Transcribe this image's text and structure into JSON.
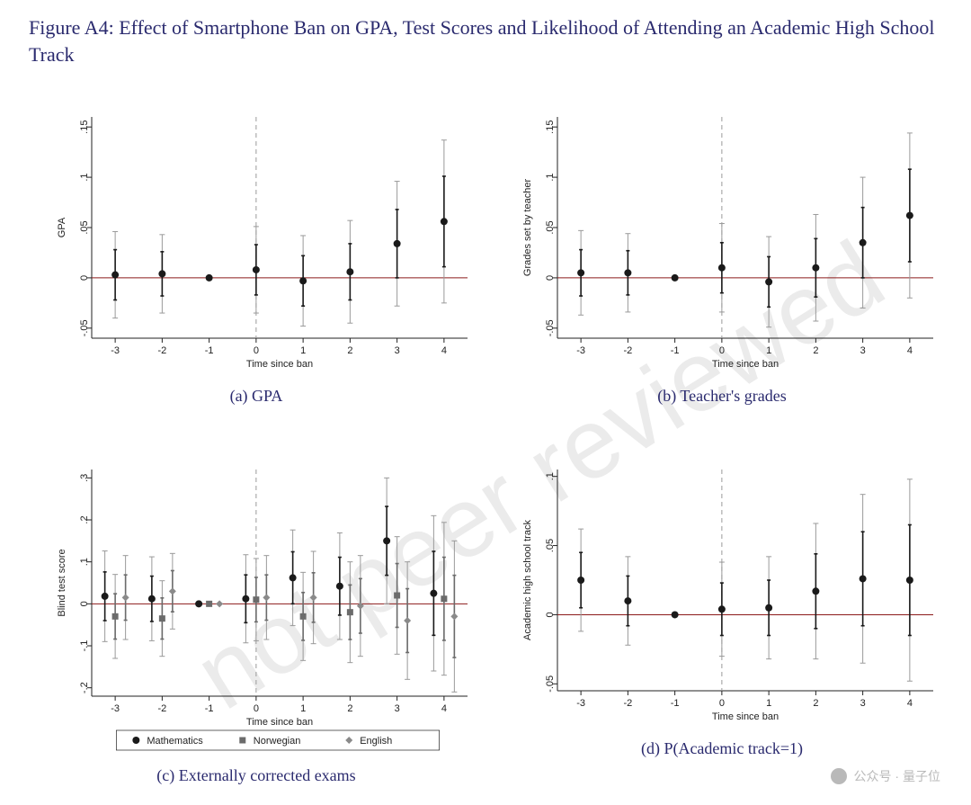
{
  "title": "Figure A4: Effect of Smartphone Ban on GPA, Test Scores and Likelihood of Attending an Academic High School Track",
  "watermark_text": "not peer reviewed",
  "watermark_color": "#e7e7e7",
  "footer_text": "公众号 · 量子位",
  "global": {
    "background_color": "#ffffff",
    "axis_color": "#222222",
    "tick_font_size": 11,
    "axis_label_font_size": 11,
    "zero_line_color": "#8b1a1a",
    "zero_line_width": 1,
    "vline_x": 0,
    "vline_color": "#9a9a9a",
    "vline_dash": "5,4",
    "x_ticks": [
      -3,
      -2,
      -1,
      0,
      1,
      2,
      3,
      4
    ],
    "x_label": "Time since ban",
    "series_colors": {
      "main": "#1a1a1a",
      "math": "#1a1a1a",
      "norwegian": "#6b6b6b",
      "english": "#8a8a8a"
    },
    "ci_cap_width": 6,
    "marker_size": 4,
    "square_size": 7,
    "diamond_size": 8,
    "ci_outer_color": "#9a9a9a",
    "ci_inner_color_main": "#1a1a1a",
    "ci_inner_color_grey": "#6b6b6b"
  },
  "panels": {
    "a": {
      "caption": "(a) GPA",
      "y_label": "GPA",
      "y_ticks": [
        -0.05,
        0,
        0.05,
        0.1,
        0.15
      ],
      "y_tick_labels": [
        "-.05",
        "0",
        ".05",
        ".1",
        ".15"
      ],
      "ylim": [
        -0.06,
        0.16
      ],
      "series": [
        {
          "name": "main",
          "marker": "circle",
          "color_key": "main",
          "points": [
            {
              "x": -3,
              "y": 0.003,
              "lo": -0.04,
              "hi": 0.046,
              "ilo": -0.022,
              "ihi": 0.028
            },
            {
              "x": -2,
              "y": 0.004,
              "lo": -0.035,
              "hi": 0.043,
              "ilo": -0.018,
              "ihi": 0.026
            },
            {
              "x": -1,
              "y": 0.0,
              "lo": 0.0,
              "hi": 0.0,
              "ilo": 0.0,
              "ihi": 0.0
            },
            {
              "x": 0,
              "y": 0.008,
              "lo": -0.035,
              "hi": 0.051,
              "ilo": -0.017,
              "ihi": 0.033
            },
            {
              "x": 1,
              "y": -0.003,
              "lo": -0.048,
              "hi": 0.042,
              "ilo": -0.028,
              "ihi": 0.022
            },
            {
              "x": 2,
              "y": 0.006,
              "lo": -0.045,
              "hi": 0.057,
              "ilo": -0.022,
              "ihi": 0.034
            },
            {
              "x": 3,
              "y": 0.034,
              "lo": -0.028,
              "hi": 0.096,
              "ilo": 0.0,
              "ihi": 0.068
            },
            {
              "x": 4,
              "y": 0.056,
              "lo": -0.025,
              "hi": 0.137,
              "ilo": 0.011,
              "ihi": 0.101
            }
          ]
        }
      ]
    },
    "b": {
      "caption": "(b) Teacher's grades",
      "y_label": "Grades set by teacher",
      "y_ticks": [
        -0.05,
        0,
        0.05,
        0.1,
        0.15
      ],
      "y_tick_labels": [
        "-.05",
        "0",
        ".05",
        ".1",
        ".15"
      ],
      "ylim": [
        -0.06,
        0.16
      ],
      "series": [
        {
          "name": "main",
          "marker": "circle",
          "color_key": "main",
          "points": [
            {
              "x": -3,
              "y": 0.005,
              "lo": -0.037,
              "hi": 0.047,
              "ilo": -0.018,
              "ihi": 0.028
            },
            {
              "x": -2,
              "y": 0.005,
              "lo": -0.034,
              "hi": 0.044,
              "ilo": -0.017,
              "ihi": 0.027
            },
            {
              "x": -1,
              "y": 0.0,
              "lo": 0.0,
              "hi": 0.0,
              "ilo": 0.0,
              "ihi": 0.0
            },
            {
              "x": 0,
              "y": 0.01,
              "lo": -0.034,
              "hi": 0.054,
              "ilo": -0.015,
              "ihi": 0.035
            },
            {
              "x": 1,
              "y": -0.004,
              "lo": -0.049,
              "hi": 0.041,
              "ilo": -0.029,
              "ihi": 0.021
            },
            {
              "x": 2,
              "y": 0.01,
              "lo": -0.043,
              "hi": 0.063,
              "ilo": -0.019,
              "ihi": 0.039
            },
            {
              "x": 3,
              "y": 0.035,
              "lo": -0.03,
              "hi": 0.1,
              "ilo": 0.0,
              "ihi": 0.07
            },
            {
              "x": 4,
              "y": 0.062,
              "lo": -0.02,
              "hi": 0.144,
              "ilo": 0.016,
              "ihi": 0.108
            }
          ]
        }
      ]
    },
    "c": {
      "caption": "(c) Externally corrected exams",
      "y_label": "Blind test score",
      "y_ticks": [
        -0.2,
        -0.1,
        0,
        0.1,
        0.2,
        0.3
      ],
      "y_tick_labels": [
        "-.2",
        "-.1",
        "0",
        ".1",
        ".2",
        ".3"
      ],
      "ylim": [
        -0.22,
        0.32
      ],
      "legend": [
        {
          "label": "Mathematics",
          "marker": "circle",
          "color_key": "math"
        },
        {
          "label": "Norwegian",
          "marker": "square",
          "color_key": "norwegian"
        },
        {
          "label": "English",
          "marker": "diamond",
          "color_key": "english"
        }
      ],
      "offsets": {
        "math": -0.22,
        "norwegian": 0.0,
        "english": 0.22
      },
      "series": [
        {
          "name": "math",
          "marker": "circle",
          "color_key": "math",
          "offset": -0.22,
          "points": [
            {
              "x": -3,
              "y": 0.018,
              "lo": -0.09,
              "hi": 0.126,
              "ilo": -0.04,
              "ihi": 0.076
            },
            {
              "x": -2,
              "y": 0.012,
              "lo": -0.088,
              "hi": 0.112,
              "ilo": -0.042,
              "ihi": 0.066
            },
            {
              "x": -1,
              "y": 0.0,
              "lo": 0.0,
              "hi": 0.0,
              "ilo": 0.0,
              "ihi": 0.0
            },
            {
              "x": 0,
              "y": 0.012,
              "lo": -0.093,
              "hi": 0.117,
              "ilo": -0.045,
              "ihi": 0.069
            },
            {
              "x": 1,
              "y": 0.062,
              "lo": -0.052,
              "hi": 0.176,
              "ilo": 0.0,
              "ihi": 0.124
            },
            {
              "x": 2,
              "y": 0.042,
              "lo": -0.085,
              "hi": 0.169,
              "ilo": -0.027,
              "ihi": 0.111
            },
            {
              "x": 3,
              "y": 0.15,
              "lo": 0.0,
              "hi": 0.3,
              "ilo": 0.068,
              "ihi": 0.232
            },
            {
              "x": 4,
              "y": 0.025,
              "lo": -0.16,
              "hi": 0.21,
              "ilo": -0.075,
              "ihi": 0.125
            }
          ]
        },
        {
          "name": "norwegian",
          "marker": "square",
          "color_key": "norwegian",
          "offset": 0.0,
          "points": [
            {
              "x": -3,
              "y": -0.03,
              "lo": -0.13,
              "hi": 0.07,
              "ilo": -0.084,
              "ihi": 0.024
            },
            {
              "x": -2,
              "y": -0.035,
              "lo": -0.125,
              "hi": 0.055,
              "ilo": -0.084,
              "ihi": 0.014
            },
            {
              "x": -1,
              "y": 0.0,
              "lo": 0.0,
              "hi": 0.0,
              "ilo": 0.0,
              "ihi": 0.0
            },
            {
              "x": 0,
              "y": 0.01,
              "lo": -0.088,
              "hi": 0.108,
              "ilo": -0.043,
              "ihi": 0.063
            },
            {
              "x": 1,
              "y": -0.03,
              "lo": -0.135,
              "hi": 0.075,
              "ilo": -0.087,
              "ihi": 0.027
            },
            {
              "x": 2,
              "y": -0.02,
              "lo": -0.14,
              "hi": 0.1,
              "ilo": -0.085,
              "ihi": 0.045
            },
            {
              "x": 3,
              "y": 0.02,
              "lo": -0.12,
              "hi": 0.16,
              "ilo": -0.056,
              "ihi": 0.096
            },
            {
              "x": 4,
              "y": 0.012,
              "lo": -0.17,
              "hi": 0.194,
              "ilo": -0.087,
              "ihi": 0.111
            }
          ]
        },
        {
          "name": "english",
          "marker": "diamond",
          "color_key": "english",
          "offset": 0.22,
          "points": [
            {
              "x": -3,
              "y": 0.015,
              "lo": -0.085,
              "hi": 0.115,
              "ilo": -0.039,
              "ihi": 0.069
            },
            {
              "x": -2,
              "y": 0.03,
              "lo": -0.06,
              "hi": 0.12,
              "ilo": -0.019,
              "ihi": 0.079
            },
            {
              "x": -1,
              "y": 0.0,
              "lo": 0.0,
              "hi": 0.0,
              "ilo": 0.0,
              "ihi": 0.0
            },
            {
              "x": 0,
              "y": 0.015,
              "lo": -0.085,
              "hi": 0.115,
              "ilo": -0.039,
              "ihi": 0.069
            },
            {
              "x": 1,
              "y": 0.015,
              "lo": -0.095,
              "hi": 0.125,
              "ilo": -0.044,
              "ihi": 0.074
            },
            {
              "x": 2,
              "y": -0.005,
              "lo": -0.125,
              "hi": 0.115,
              "ilo": -0.07,
              "ihi": 0.06
            },
            {
              "x": 3,
              "y": -0.04,
              "lo": -0.18,
              "hi": 0.1,
              "ilo": -0.116,
              "ihi": 0.036
            },
            {
              "x": 4,
              "y": -0.03,
              "lo": -0.21,
              "hi": 0.15,
              "ilo": -0.128,
              "ihi": 0.068
            }
          ]
        }
      ]
    },
    "d": {
      "caption": "(d) P(Academic track=1)",
      "y_label": "Academic high school track",
      "y_ticks": [
        -0.05,
        0,
        0.05,
        0.1
      ],
      "y_tick_labels": [
        "-.05",
        "0",
        ".05",
        ".1"
      ],
      "ylim": [
        -0.055,
        0.105
      ],
      "series": [
        {
          "name": "main",
          "marker": "circle",
          "color_key": "main",
          "points": [
            {
              "x": -3,
              "y": 0.025,
              "lo": -0.012,
              "hi": 0.062,
              "ilo": 0.005,
              "ihi": 0.045
            },
            {
              "x": -2,
              "y": 0.01,
              "lo": -0.022,
              "hi": 0.042,
              "ilo": -0.008,
              "ihi": 0.028
            },
            {
              "x": -1,
              "y": 0.0,
              "lo": 0.0,
              "hi": 0.0,
              "ilo": 0.0,
              "ihi": 0.0
            },
            {
              "x": 0,
              "y": 0.004,
              "lo": -0.03,
              "hi": 0.038,
              "ilo": -0.015,
              "ihi": 0.023
            },
            {
              "x": 1,
              "y": 0.005,
              "lo": -0.032,
              "hi": 0.042,
              "ilo": -0.015,
              "ihi": 0.025
            },
            {
              "x": 2,
              "y": 0.017,
              "lo": -0.032,
              "hi": 0.066,
              "ilo": -0.01,
              "ihi": 0.044
            },
            {
              "x": 3,
              "y": 0.026,
              "lo": -0.035,
              "hi": 0.087,
              "ilo": -0.008,
              "ihi": 0.06
            },
            {
              "x": 4,
              "y": 0.025,
              "lo": -0.048,
              "hi": 0.098,
              "ilo": -0.015,
              "ihi": 0.065
            }
          ]
        }
      ]
    }
  }
}
